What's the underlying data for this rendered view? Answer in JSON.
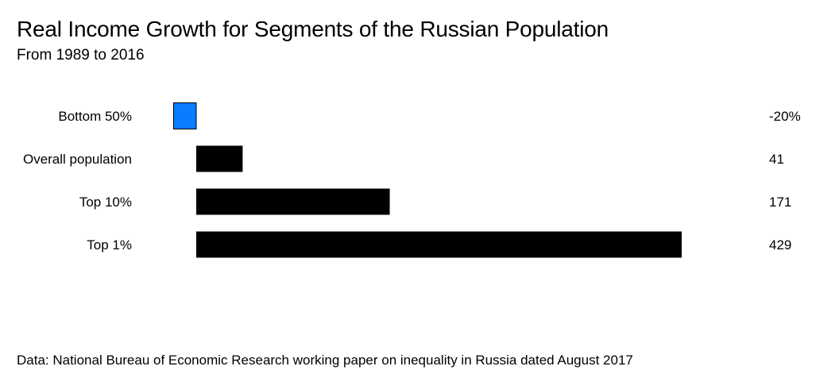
{
  "header": {
    "title": "Real Income Growth for Segments of the Russian Population",
    "subtitle": "From 1989 to 2016"
  },
  "footer": {
    "source": "Data: National Bureau of Economic Research working paper on inequality in Russia dated August 2017"
  },
  "chart_data": {
    "type": "bar",
    "orientation": "horizontal",
    "title": "Real Income Growth for Segments of the Russian Population",
    "subtitle": "From 1989 to 2016",
    "xlabel": "",
    "ylabel": "",
    "categories": [
      "Bottom 50%",
      "Overall population",
      "Top 10%",
      "Top 1%"
    ],
    "values": [
      -20,
      41,
      171,
      429
    ],
    "value_labels": [
      "-20%",
      "41",
      "171",
      "429"
    ],
    "xlim": [
      -20,
      429
    ],
    "grid": false,
    "legend": "none",
    "colors": {
      "negative": "#0a7cff",
      "positive": "#000000"
    }
  }
}
